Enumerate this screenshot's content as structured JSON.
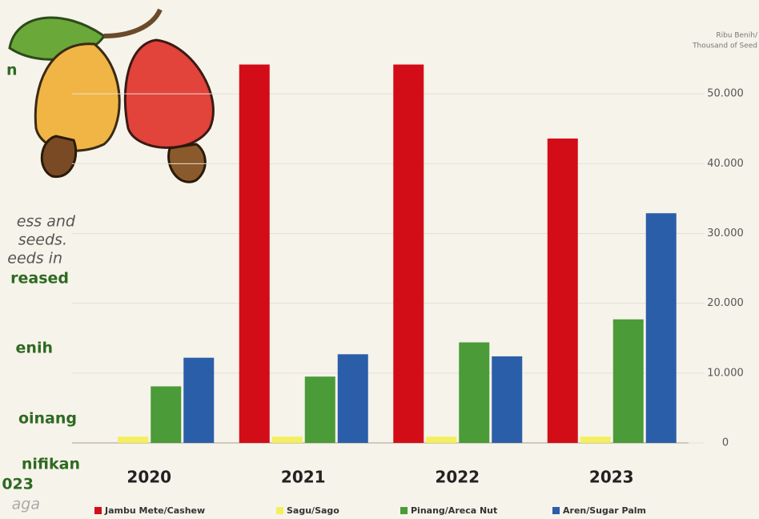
{
  "side_text": [
    "n",
    "ess and",
    "seeds.",
    "eeds in",
    "reased",
    "enih",
    "oinang",
    "nifikan",
    "023",
    "aga"
  ],
  "chart_data": {
    "type": "bar",
    "y_axis_label": [
      "Ribu Benih/",
      "Thousand of Seed"
    ],
    "categories": [
      "2020",
      "2021",
      "2022",
      "2023"
    ],
    "series": [
      {
        "name": "Jambu Mete/Cashew",
        "color": "#d30d18",
        "values": [
          0,
          54200,
          54200,
          43600
        ]
      },
      {
        "name": "Sagu/Sago",
        "color": "#f3ef5e",
        "values": [
          900,
          900,
          900,
          900
        ]
      },
      {
        "name": "Pinang/Areca Nut",
        "color": "#4b9b38",
        "values": [
          8100,
          9500,
          14400,
          17700
        ]
      },
      {
        "name": "Aren/Sugar Palm",
        "color": "#2b5ea9",
        "values": [
          12200,
          12700,
          12400,
          32900
        ]
      }
    ],
    "ylim": [
      0,
      60000
    ],
    "yticks": [
      0,
      {
        "value": 10000,
        "label": "10.000"
      },
      {
        "value": 20000,
        "label": "20.000"
      },
      {
        "value": 30000,
        "label": "30.000"
      },
      {
        "value": 40000,
        "label": "40.000"
      },
      {
        "value": 50000,
        "label": "50.000"
      }
    ],
    "grid": true
  }
}
